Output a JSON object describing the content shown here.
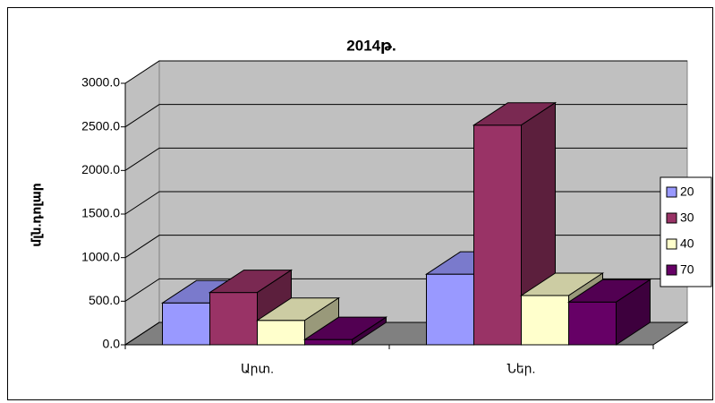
{
  "chart_data": {
    "type": "bar3d",
    "title": "2014թ.",
    "y_label": "մլն.դոլար",
    "categories": [
      "Արտ.",
      "Ներ."
    ],
    "series": [
      {
        "name": "20",
        "color": "#9999ff",
        "values": [
          480,
          810
        ]
      },
      {
        "name": "30",
        "color": "#993366",
        "values": [
          600,
          2520
        ]
      },
      {
        "name": "40",
        "color": "#ffffcc",
        "values": [
          280,
          565
        ]
      },
      {
        "name": "70",
        "color": "#660066",
        "values": [
          60,
          490
        ]
      }
    ],
    "ylim": [
      0,
      3000
    ],
    "yticks": [
      {
        "value": 0,
        "label": "0.0"
      },
      {
        "value": 500,
        "label": "500.0"
      },
      {
        "value": 1000,
        "label": "1000.0"
      },
      {
        "value": 1500,
        "label": "1500.0"
      },
      {
        "value": 2000,
        "label": "2000.0"
      },
      {
        "value": 2500,
        "label": "2500.0"
      },
      {
        "value": 3000,
        "label": "3000.0"
      }
    ],
    "grid": true,
    "legend": "right"
  }
}
